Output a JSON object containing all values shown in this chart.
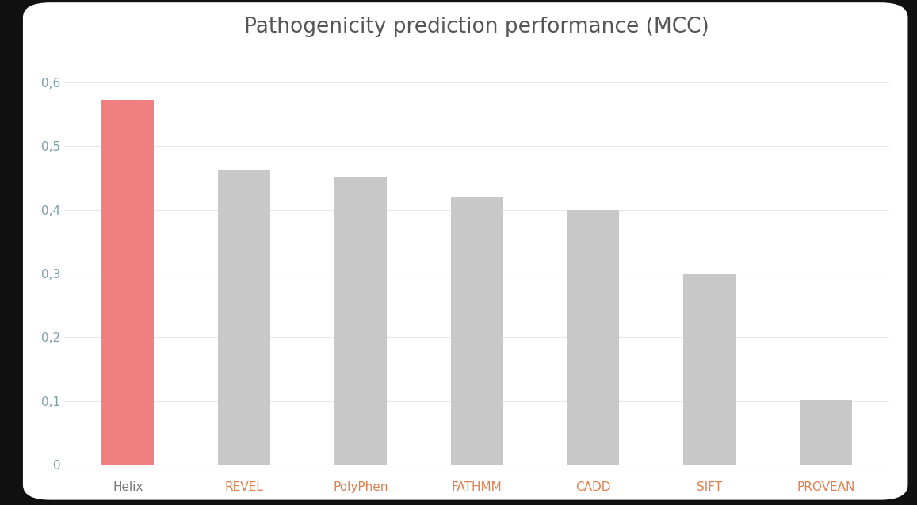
{
  "categories": [
    "Helix",
    "REVEL",
    "PolyPhen",
    "FATHMM",
    "CADD",
    "SIFT",
    "PROVEAN"
  ],
  "values": [
    0.572,
    0.463,
    0.452,
    0.421,
    0.4,
    0.3,
    0.101
  ],
  "bar_colors": [
    "#f08080",
    "#c8c8c8",
    "#c8c8c8",
    "#c8c8c8",
    "#c8c8c8",
    "#c8c8c8",
    "#c8c8c8"
  ],
  "title": "Pathogenicity prediction performance (MCC)",
  "title_fontsize": 19,
  "title_color": "#555555",
  "ylim": [
    0,
    0.65
  ],
  "yticks": [
    0,
    0.1,
    0.2,
    0.3,
    0.4,
    0.5,
    0.6
  ],
  "ytick_labels": [
    "0",
    "0,1",
    "0,2",
    "0,3",
    "0,4",
    "0,5",
    "0,6"
  ],
  "tick_color_y": "#7a9ea8",
  "tick_color_x_first": "#777777",
  "tick_color_x_rest": "#e08050",
  "tick_fontsize": 11,
  "card_background": "#ffffff",
  "outer_background": "#111111",
  "grid_color": "#e8e8e8",
  "bar_width": 0.45
}
